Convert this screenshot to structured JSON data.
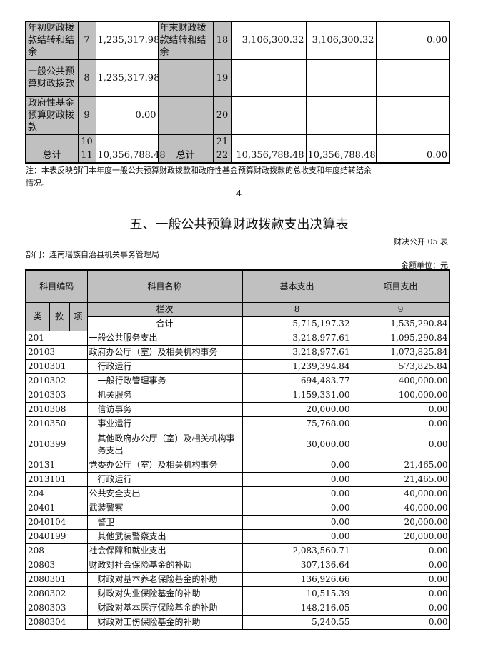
{
  "top_table": {
    "rows": [
      {
        "left_label": "年初财政拨款结转和结余",
        "left_no": "7",
        "left_value": "1,235,317.98",
        "right_label": "年末财政拨款结转和结余",
        "right_no": "18",
        "v1": "3,106,300.32",
        "v2": "3,106,300.32",
        "v3": "0.00"
      },
      {
        "left_label": "一般公共预算财政拨款",
        "left_no": "8",
        "left_value": "1,235,317.98",
        "right_label": "",
        "right_no": "19",
        "v1": "",
        "v2": "",
        "v3": ""
      },
      {
        "left_label": "政府性基金预算财政拨款",
        "left_no": "9",
        "left_value": "0.00",
        "right_label": "",
        "right_no": "20",
        "v1": "",
        "v2": "",
        "v3": ""
      },
      {
        "left_label": "",
        "left_no": "10",
        "left_value": "",
        "right_label": "",
        "right_no": "21",
        "v1": "",
        "v2": "",
        "v3": ""
      },
      {
        "left_label": "总计",
        "left_no": "11",
        "left_value": "10,356,788.48",
        "right_label": "总计",
        "right_no": "22",
        "v1": "10,356,788.48",
        "v2": "10,356,788.48",
        "v3": "0.00"
      }
    ],
    "note_line1": "注：本表反映部门本年度一般公共预算财政拨款和政府性基金预算财政拨款的总收支和年度结转结余",
    "note_line2": "情况。"
  },
  "page_number": "— 4 —",
  "section": {
    "title": "五、一般公共预算财政拨款支出决算表",
    "form_code": "财决公开 05 表",
    "department": "部门：连南瑶族自治县机关事务管理局",
    "unit": "金额单位：元",
    "headers": {
      "code": "科目编码",
      "name": "科目名称",
      "basic": "基本支出",
      "project": "项目支出",
      "lei": "类",
      "kuan": "款",
      "xiang": "项",
      "lanci": "栏次",
      "col_basic": "8",
      "col_project": "9",
      "total_label": "合计",
      "total_basic": "5,715,197.32",
      "total_project": "1,535,290.84"
    },
    "rows": [
      {
        "code": "201",
        "name": "一般公共服务支出",
        "basic": "3,218,977.61",
        "project": "1,095,290.84"
      },
      {
        "code": "20103",
        "name": "政府办公厅（室）及相关机构事务",
        "basic": "3,218,977.61",
        "project": "1,073,825.84"
      },
      {
        "code": "2010301",
        "name": "行政运行",
        "basic": "1,239,394.84",
        "project": "573,825.84"
      },
      {
        "code": "2010302",
        "name": "一般行政管理事务",
        "basic": "694,483.77",
        "project": "400,000.00"
      },
      {
        "code": "2010303",
        "name": "机关服务",
        "basic": "1,159,331.00",
        "project": "100,000.00"
      },
      {
        "code": "2010308",
        "name": "信访事务",
        "basic": "20,000.00",
        "project": "0.00"
      },
      {
        "code": "2010350",
        "name": "事业运行",
        "basic": "75,768.00",
        "project": "0.00"
      },
      {
        "code": "2010399",
        "name": "其他政府办公厅（室）及相关机构事务支出",
        "basic": "30,000.00",
        "project": "0.00"
      },
      {
        "code": "20131",
        "name": "党委办公厅（室）及相关机构事务",
        "basic": "0.00",
        "project": "21,465.00"
      },
      {
        "code": "2013101",
        "name": "行政运行",
        "basic": "0.00",
        "project": "21,465.00"
      },
      {
        "code": "204",
        "name": "公共安全支出",
        "basic": "0.00",
        "project": "40,000.00"
      },
      {
        "code": "20401",
        "name": "武装警察",
        "basic": "0.00",
        "project": "40,000.00"
      },
      {
        "code": "2040104",
        "name": "警卫",
        "basic": "0.00",
        "project": "20,000.00"
      },
      {
        "code": "2040199",
        "name": "其他武装警察支出",
        "basic": "0.00",
        "project": "20,000.00"
      },
      {
        "code": "208",
        "name": "社会保障和就业支出",
        "basic": "2,083,560.71",
        "project": "0.00"
      },
      {
        "code": "20803",
        "name": "财政对社会保险基金的补助",
        "basic": "307,136.64",
        "project": "0.00"
      },
      {
        "code": "2080301",
        "name": "财政对基本养老保险基金的补助",
        "basic": "136,926.66",
        "project": "0.00"
      },
      {
        "code": "2080302",
        "name": "财政对失业保险基金的补助",
        "basic": "10,515.39",
        "project": "0.00"
      },
      {
        "code": "2080303",
        "name": "财政对基本医疗保险基金的补助",
        "basic": "148,216.05",
        "project": "0.00"
      },
      {
        "code": "2080304",
        "name": "财政对工伤保险基金的补助",
        "basic": "5,240.55",
        "project": "0.00"
      }
    ]
  }
}
